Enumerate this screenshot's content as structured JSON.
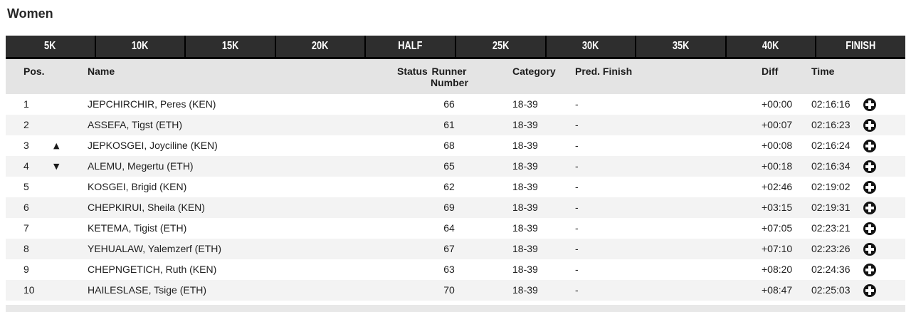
{
  "title": "Women",
  "tabs": [
    "5K",
    "10K",
    "15K",
    "20K",
    "HALF",
    "25K",
    "30K",
    "35K",
    "40K",
    "FINISH"
  ],
  "table": {
    "headers": {
      "pos": "Pos.",
      "name": "Name",
      "status": "Status",
      "runner": "Runner Number",
      "category": "Category",
      "pred": "Pred. Finish",
      "diff": "Diff",
      "time": "Time"
    },
    "rows": [
      {
        "pos": "1",
        "change": "",
        "name": "JEPCHIRCHIR, Peres (KEN)",
        "runner": "66",
        "category": "18-39",
        "pred": "-",
        "diff": "+00:00",
        "time": "02:16:16"
      },
      {
        "pos": "2",
        "change": "",
        "name": "ASSEFA, Tigst (ETH)",
        "runner": "61",
        "category": "18-39",
        "pred": "-",
        "diff": "+00:07",
        "time": "02:16:23"
      },
      {
        "pos": "3",
        "change": "▲",
        "name": "JEPKOSGEI, Joyciline (KEN)",
        "runner": "68",
        "category": "18-39",
        "pred": "-",
        "diff": "+00:08",
        "time": "02:16:24"
      },
      {
        "pos": "4",
        "change": "▼",
        "name": "ALEMU, Megertu (ETH)",
        "runner": "65",
        "category": "18-39",
        "pred": "-",
        "diff": "+00:18",
        "time": "02:16:34"
      },
      {
        "pos": "5",
        "change": "",
        "name": "KOSGEI, Brigid (KEN)",
        "runner": "62",
        "category": "18-39",
        "pred": "-",
        "diff": "+02:46",
        "time": "02:19:02"
      },
      {
        "pos": "6",
        "change": "",
        "name": "CHEPKIRUI, Sheila (KEN)",
        "runner": "69",
        "category": "18-39",
        "pred": "-",
        "diff": "+03:15",
        "time": "02:19:31"
      },
      {
        "pos": "7",
        "change": "",
        "name": "KETEMA, Tigist (ETH)",
        "runner": "64",
        "category": "18-39",
        "pred": "-",
        "diff": "+07:05",
        "time": "02:23:21"
      },
      {
        "pos": "8",
        "change": "",
        "name": "YEHUALAW, Yalemzerf (ETH)",
        "runner": "67",
        "category": "18-39",
        "pred": "-",
        "diff": "+07:10",
        "time": "02:23:26"
      },
      {
        "pos": "9",
        "change": "",
        "name": "CHEPNGETICH, Ruth (KEN)",
        "runner": "63",
        "category": "18-39",
        "pred": "-",
        "diff": "+08:20",
        "time": "02:24:36"
      },
      {
        "pos": "10",
        "change": "",
        "name": "HAILESLASE, Tsige (ETH)",
        "runner": "70",
        "category": "18-39",
        "pred": "-",
        "diff": "+08:47",
        "time": "02:25:03"
      }
    ]
  },
  "icons": {
    "expand_row": "plus-circle-icon",
    "position_up": "triangle-up-icon",
    "position_down": "triangle-down-icon"
  },
  "colors": {
    "tabbar_bg": "#2e2e2e",
    "tab_separator": "#000000",
    "tab_text": "#ffffff",
    "header_bg": "#e4e4e4",
    "row_alt_bg": "#f3f3f3",
    "text": "#212121",
    "expand_icon_bg": "#141414"
  }
}
